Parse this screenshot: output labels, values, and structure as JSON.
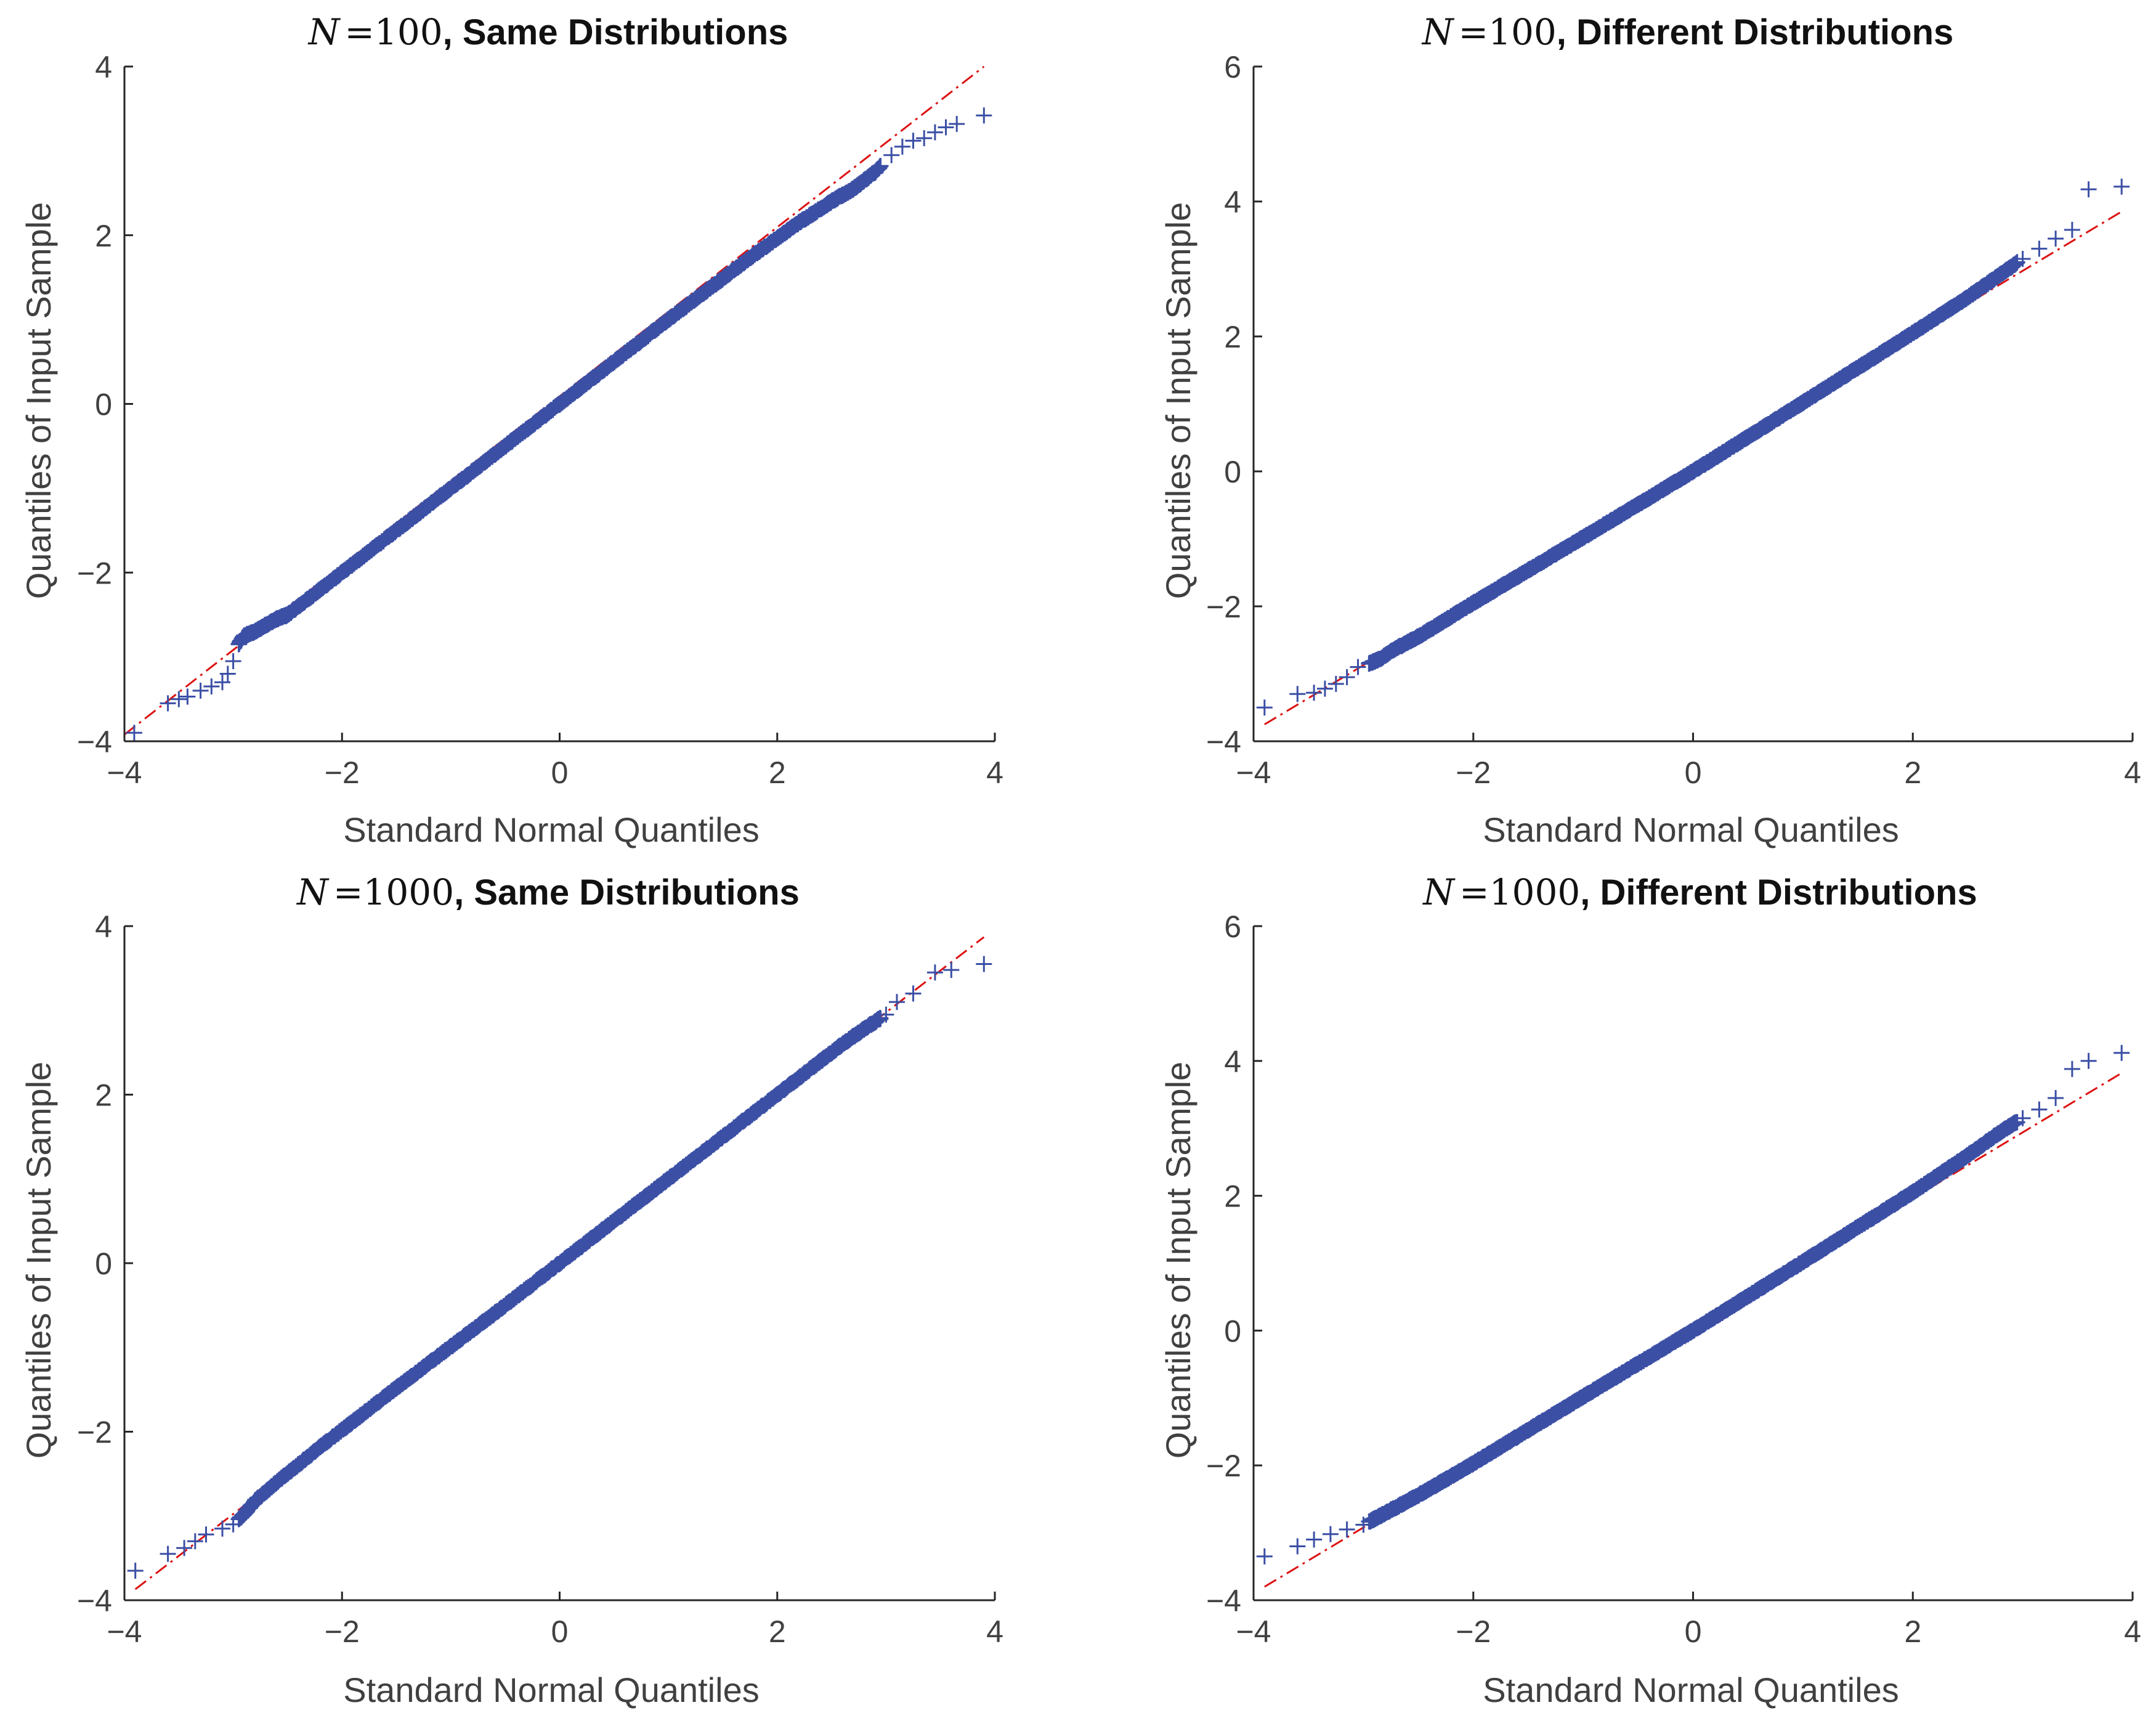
{
  "chart_data": [
    {
      "type": "scatter",
      "title": {
        "n_symbol": "N",
        "equals": "=",
        "n_value": "100",
        "rest": ", Same Distributions"
      },
      "xlabel": "Standard Normal Quantiles",
      "ylabel": "Quantiles of Input Sample",
      "xlim": [
        -4,
        4
      ],
      "ylim": [
        -4,
        4
      ],
      "xticks": [
        -4,
        -2,
        0,
        2,
        4
      ],
      "yticks": [
        -4,
        -2,
        0,
        2,
        4
      ],
      "xtick_labels": [
        "−4",
        "−2",
        "0",
        "2",
        "4"
      ],
      "ytick_labels": [
        "−4",
        "−2",
        "0",
        "2",
        "4"
      ],
      "reference_line": {
        "from": [
          -4,
          -3.92
        ],
        "to": [
          3.9,
          4.0
        ],
        "style": "dash-dot",
        "color": "#dd1111"
      },
      "points": [
        [
          -3.91,
          -3.9
        ],
        [
          -3.6,
          -3.55
        ],
        [
          -3.5,
          -3.5
        ],
        [
          -3.42,
          -3.47
        ],
        [
          -3.3,
          -3.4
        ],
        [
          -3.2,
          -3.35
        ],
        [
          -3.1,
          -3.3
        ],
        [
          -3.05,
          -3.2
        ],
        [
          -3.0,
          -3.05
        ],
        [
          -2.95,
          -2.85
        ],
        [
          -2.9,
          -2.75
        ],
        [
          -2.8,
          -2.7
        ],
        [
          -2.7,
          -2.62
        ],
        [
          -2.6,
          -2.55
        ],
        [
          -2.5,
          -2.5
        ],
        [
          -2.2,
          -2.2
        ],
        [
          -1.8,
          -1.8
        ],
        [
          -1.0,
          -1.0
        ],
        [
          0,
          0
        ],
        [
          1.0,
          1.0
        ],
        [
          1.8,
          1.78
        ],
        [
          2.2,
          2.15
        ],
        [
          2.5,
          2.4
        ],
        [
          2.7,
          2.55
        ],
        [
          2.9,
          2.75
        ],
        [
          3.05,
          2.95
        ],
        [
          3.15,
          3.05
        ],
        [
          3.25,
          3.12
        ],
        [
          3.35,
          3.15
        ],
        [
          3.45,
          3.22
        ],
        [
          3.55,
          3.28
        ],
        [
          3.65,
          3.32
        ],
        [
          3.9,
          3.42
        ]
      ]
    },
    {
      "type": "scatter",
      "title": {
        "n_symbol": "N",
        "equals": "=",
        "n_value": "100",
        "rest": ", Different Distributions"
      },
      "xlabel": "Standard Normal Quantiles",
      "ylabel": "Quantiles of Input Sample",
      "xlim": [
        -4,
        4
      ],
      "ylim": [
        -4,
        6
      ],
      "xticks": [
        -4,
        -2,
        0,
        2,
        4
      ],
      "yticks": [
        -4,
        -2,
        0,
        2,
        4,
        6
      ],
      "xtick_labels": [
        "−4",
        "−2",
        "0",
        "2",
        "4"
      ],
      "ytick_labels": [
        "−4",
        "−2",
        "0",
        "2",
        "4",
        "6"
      ],
      "reference_line": {
        "from": [
          -3.9,
          -3.75
        ],
        "to": [
          3.9,
          3.85
        ],
        "style": "dash-dot",
        "color": "#dd1111"
      },
      "points": [
        [
          -3.9,
          -3.5
        ],
        [
          -3.6,
          -3.3
        ],
        [
          -3.45,
          -3.28
        ],
        [
          -3.35,
          -3.22
        ],
        [
          -3.25,
          -3.15
        ],
        [
          -3.15,
          -3.05
        ],
        [
          -3.05,
          -2.9
        ],
        [
          -2.95,
          -2.85
        ],
        [
          -2.85,
          -2.78
        ],
        [
          -2.7,
          -2.62
        ],
        [
          -2.5,
          -2.45
        ],
        [
          -2.0,
          -1.95
        ],
        [
          -1.0,
          -0.98
        ],
        [
          0,
          0
        ],
        [
          1.0,
          1.02
        ],
        [
          2.0,
          2.05
        ],
        [
          2.5,
          2.58
        ],
        [
          2.8,
          2.92
        ],
        [
          3.0,
          3.15
        ],
        [
          3.15,
          3.3
        ],
        [
          3.3,
          3.45
        ],
        [
          3.45,
          3.58
        ],
        [
          3.6,
          4.18
        ],
        [
          3.9,
          4.22
        ]
      ]
    },
    {
      "type": "scatter",
      "title": {
        "n_symbol": "N",
        "equals": "=",
        "n_value": "1000",
        "rest": ", Same Distributions"
      },
      "xlabel": "Standard Normal Quantiles",
      "ylabel": "Quantiles of Input Sample",
      "xlim": [
        -4,
        4
      ],
      "ylim": [
        -4,
        4
      ],
      "xticks": [
        -4,
        -2,
        0,
        2,
        4
      ],
      "yticks": [
        -4,
        -2,
        0,
        2,
        4
      ],
      "xtick_labels": [
        "−4",
        "−2",
        "0",
        "2",
        "4"
      ],
      "ytick_labels": [
        "−4",
        "−2",
        "0",
        "2",
        "4"
      ],
      "reference_line": {
        "from": [
          -3.9,
          -3.87
        ],
        "to": [
          3.9,
          3.87
        ],
        "style": "dash-dot",
        "color": "#dd1111"
      },
      "points": [
        [
          -3.9,
          -3.65
        ],
        [
          -3.6,
          -3.45
        ],
        [
          -3.45,
          -3.38
        ],
        [
          -3.35,
          -3.3
        ],
        [
          -3.25,
          -3.22
        ],
        [
          -3.1,
          -3.15
        ],
        [
          -3.0,
          -3.1
        ],
        [
          -2.9,
          -2.98
        ],
        [
          -2.8,
          -2.82
        ],
        [
          -2.6,
          -2.6
        ],
        [
          -2.2,
          -2.18
        ],
        [
          -1.5,
          -1.48
        ],
        [
          -0.5,
          -0.5
        ],
        [
          0,
          0
        ],
        [
          0.5,
          0.5
        ],
        [
          1.5,
          1.5
        ],
        [
          2.2,
          2.2
        ],
        [
          2.6,
          2.6
        ],
        [
          2.8,
          2.78
        ],
        [
          3.0,
          2.95
        ],
        [
          3.1,
          3.1
        ],
        [
          3.25,
          3.2
        ],
        [
          3.45,
          3.45
        ],
        [
          3.6,
          3.48
        ],
        [
          3.9,
          3.55
        ]
      ]
    },
    {
      "type": "scatter",
      "title": {
        "n_symbol": "N",
        "equals": "=",
        "n_value": "1000",
        "rest": ", Different Distributions"
      },
      "xlabel": "Standard Normal Quantiles",
      "ylabel": "Quantiles of Input Sample",
      "xlim": [
        -4,
        4
      ],
      "ylim": [
        -4,
        6
      ],
      "xticks": [
        -4,
        -2,
        0,
        2,
        4
      ],
      "yticks": [
        -4,
        -2,
        0,
        2,
        4,
        6
      ],
      "xtick_labels": [
        "−4",
        "−2",
        "0",
        "2",
        "4"
      ],
      "ytick_labels": [
        "−4",
        "−2",
        "0",
        "2",
        "4",
        "6"
      ],
      "reference_line": {
        "from": [
          -3.9,
          -3.8
        ],
        "to": [
          3.9,
          3.82
        ],
        "style": "dash-dot",
        "color": "#dd1111"
      },
      "points": [
        [
          -3.9,
          -3.35
        ],
        [
          -3.6,
          -3.2
        ],
        [
          -3.45,
          -3.1
        ],
        [
          -3.3,
          -3.02
        ],
        [
          -3.15,
          -2.95
        ],
        [
          -3.0,
          -2.88
        ],
        [
          -2.85,
          -2.75
        ],
        [
          -2.7,
          -2.62
        ],
        [
          -2.4,
          -2.35
        ],
        [
          -2.0,
          -1.97
        ],
        [
          -1.0,
          -0.98
        ],
        [
          0,
          0
        ],
        [
          1.0,
          1.02
        ],
        [
          2.0,
          2.05
        ],
        [
          2.5,
          2.6
        ],
        [
          2.8,
          2.95
        ],
        [
          3.0,
          3.15
        ],
        [
          3.15,
          3.28
        ],
        [
          3.3,
          3.45
        ],
        [
          3.45,
          3.88
        ],
        [
          3.6,
          4.0
        ],
        [
          3.9,
          4.12
        ]
      ]
    }
  ],
  "marker_color": "#3b4fa5"
}
